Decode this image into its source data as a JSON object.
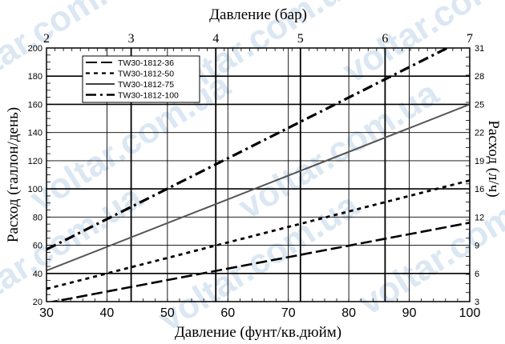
{
  "chart_data": {
    "type": "line",
    "xlabel": "Давление (фунт/кв.дюйм)",
    "xlabel_top": "Давление (бар)",
    "ylabel": "Расход (галлон/день)",
    "ylabel_right": "Расход (л/ч)",
    "xlim": [
      30,
      100
    ],
    "ylim": [
      20,
      200
    ],
    "xlim_top": [
      2,
      7
    ],
    "ylim_right": [
      3,
      31
    ],
    "x_ticks": [
      30,
      40,
      50,
      60,
      70,
      80,
      90,
      100
    ],
    "y_ticks": [
      20,
      40,
      60,
      80,
      100,
      120,
      140,
      160,
      180,
      200
    ],
    "x_ticks_top": [
      2,
      3,
      4,
      5,
      6,
      7
    ],
    "y_ticks_right": [
      3,
      6,
      9,
      12,
      16,
      19,
      22,
      25,
      28,
      31
    ],
    "grid": true,
    "legend_position": "top-left",
    "series": [
      {
        "name": "TW30-1812-36",
        "dash": "long-dash",
        "x": [
          30,
          100
        ],
        "y": [
          19,
          76
        ]
      },
      {
        "name": "TW30-1812-50",
        "dash": "short-dash",
        "x": [
          30,
          100
        ],
        "y": [
          29,
          106
        ]
      },
      {
        "name": "TW30-1812-75",
        "dash": "solid",
        "x": [
          30,
          100
        ],
        "y": [
          42,
          160
        ]
      },
      {
        "name": "TW30-1812-100",
        "dash": "dash-dot",
        "x": [
          30,
          100
        ],
        "y": [
          57,
          208
        ]
      }
    ]
  },
  "watermark": {
    "text": "voltar.com.ua",
    "color": "#dbe7f3"
  }
}
